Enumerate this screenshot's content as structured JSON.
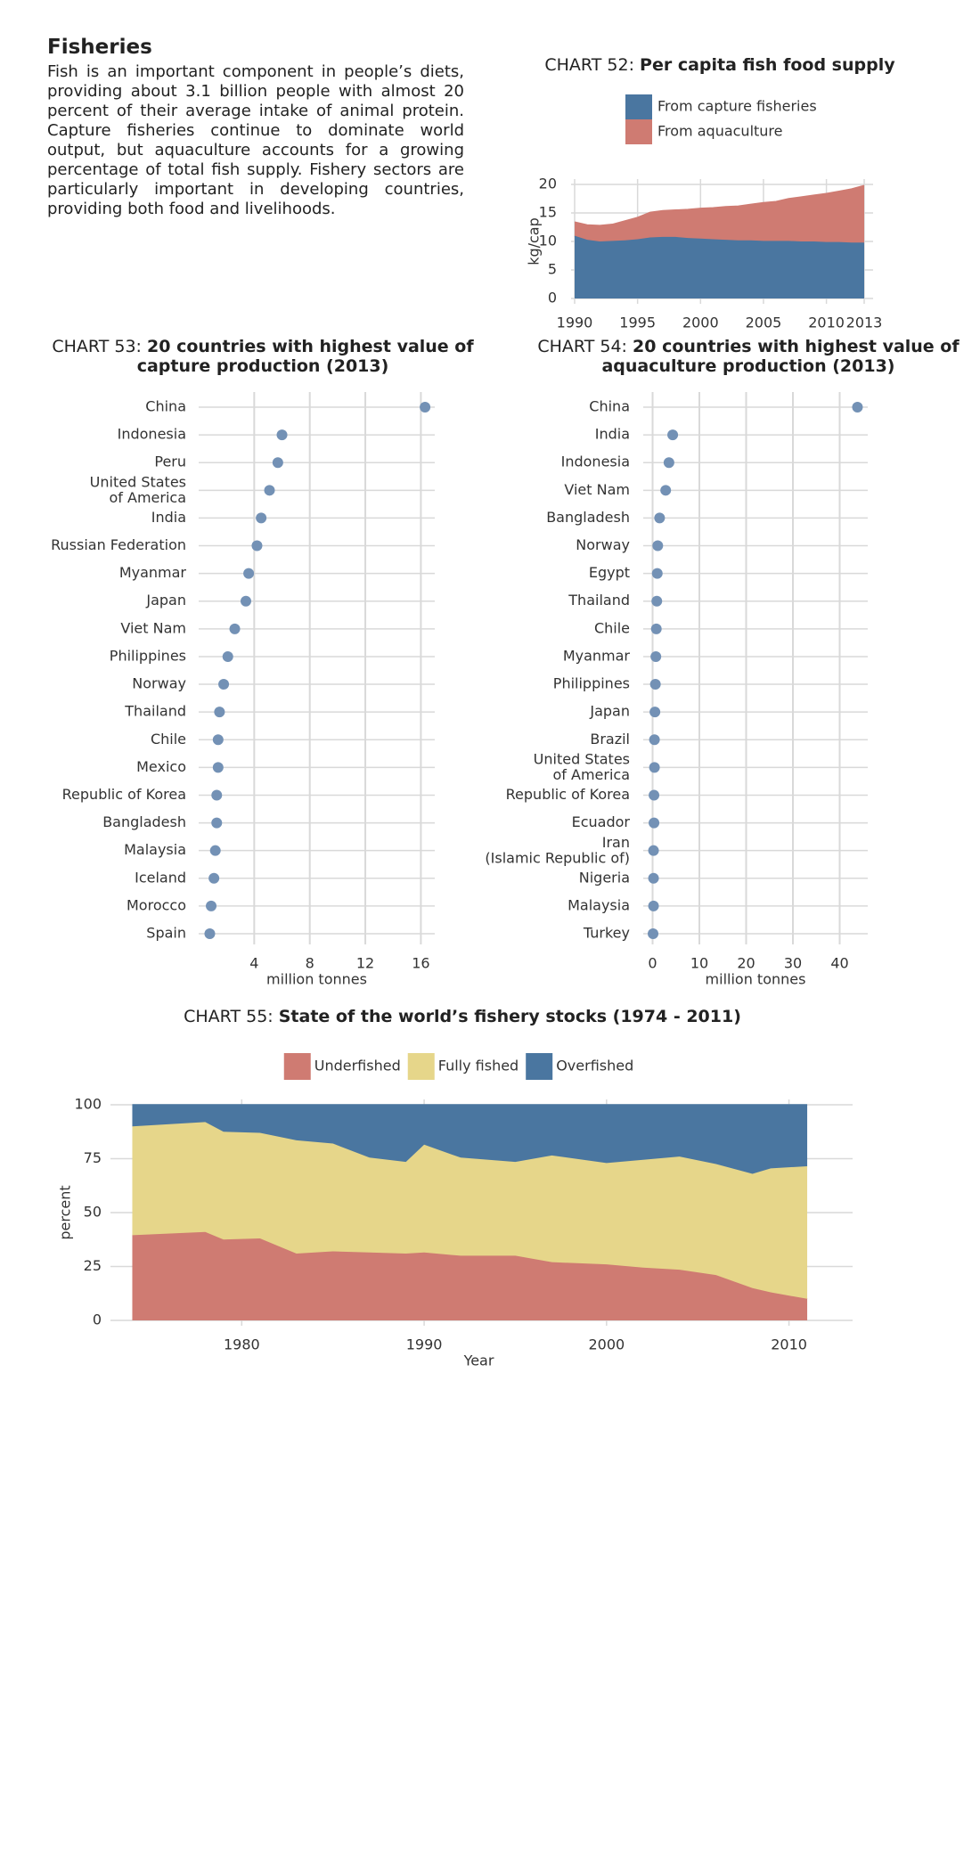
{
  "intro": {
    "heading": "Fisheries",
    "text": "Fish is an important component in people’s diets, providing about 3.1 billion people with almost 20 percent of their average intake of animal protein.  Capture fisheries continue to dominate world output, but aquaculture accounts for a growing percentage of total fish supply.  Fishery sectors are particularly important in developing countries, providing both food and livelihoods."
  },
  "chart_data": [
    {
      "type": "area",
      "chart_label": "CHART 52:",
      "title": "Per capita fish food supply",
      "x": [
        1990,
        1991,
        1992,
        1993,
        1994,
        1995,
        1996,
        1997,
        1998,
        1999,
        2000,
        2001,
        2002,
        2003,
        2004,
        2005,
        2006,
        2007,
        2008,
        2009,
        2010,
        2011,
        2012,
        2013
      ],
      "series": [
        {
          "name": "From capture fisheries",
          "color": "#4a76a0",
          "values": [
            11.0,
            10.3,
            10.0,
            10.1,
            10.2,
            10.4,
            10.7,
            10.8,
            10.8,
            10.6,
            10.5,
            10.4,
            10.3,
            10.2,
            10.2,
            10.1,
            10.1,
            10.1,
            10.0,
            10.0,
            9.9,
            9.9,
            9.8,
            9.8
          ]
        },
        {
          "name": "From aquaculture",
          "color": "#cf7b72",
          "values": [
            2.4,
            2.6,
            2.8,
            2.9,
            3.4,
            3.8,
            4.4,
            4.6,
            4.7,
            5.0,
            5.3,
            5.5,
            5.8,
            6.0,
            6.3,
            6.7,
            6.9,
            7.4,
            7.8,
            8.1,
            8.5,
            8.9,
            9.4,
            10.0
          ]
        }
      ],
      "xlim": [
        1990,
        2013
      ],
      "xticks": [
        1990,
        1995,
        2000,
        2005,
        2010,
        2013
      ],
      "ylim": [
        0,
        20
      ],
      "yticks": [
        0,
        5,
        10,
        15,
        20
      ],
      "ylabel": "kg/cap",
      "grid": true,
      "stacked": true,
      "legend": "top"
    },
    {
      "type": "dot",
      "chart_label": "CHART 53:",
      "title": "20 countries with highest value of capture production (2013)",
      "categories": [
        "China",
        "Indonesia",
        "Peru",
        "United States\nof America",
        "India",
        "Russian Federation",
        "Myanmar",
        "Japan",
        "Viet Nam",
        "Philippines",
        "Norway",
        "Thailand",
        "Chile",
        "Mexico",
        "Republic of Korea",
        "Bangladesh",
        "Malaysia",
        "Iceland",
        "Morocco",
        "Spain"
      ],
      "values": [
        16.3,
        6.0,
        5.7,
        5.1,
        4.5,
        4.2,
        3.6,
        3.4,
        2.6,
        2.1,
        1.8,
        1.5,
        1.4,
        1.4,
        1.3,
        1.3,
        1.2,
        1.1,
        0.9,
        0.8
      ],
      "color": "#7391b5",
      "xlim": [
        0,
        17
      ],
      "xticks": [
        4,
        8,
        12,
        16
      ],
      "xlabel": "million tonnes",
      "grid": true
    },
    {
      "type": "dot",
      "chart_label": "CHART 54:",
      "title": "20 countries with highest value of aquaculture production (2013)",
      "categories": [
        "China",
        "India",
        "Indonesia",
        "Viet Nam",
        "Bangladesh",
        "Norway",
        "Egypt",
        "Thailand",
        "Chile",
        "Myanmar",
        "Philippines",
        "Japan",
        "Brazil",
        "United States\nof America",
        "Republic of Korea",
        "Ecuador",
        "Iran\n(Islamic Republic of)",
        "Nigeria",
        "Malaysia",
        "Turkey"
      ],
      "values": [
        43.8,
        4.3,
        3.5,
        2.8,
        1.5,
        1.1,
        1.0,
        0.9,
        0.8,
        0.7,
        0.6,
        0.5,
        0.4,
        0.4,
        0.3,
        0.3,
        0.2,
        0.2,
        0.2,
        0.1
      ],
      "color": "#7391b5",
      "xlim": [
        -2,
        46
      ],
      "xticks": [
        0,
        10,
        20,
        30,
        40
      ],
      "xlabel": "million tonnes",
      "grid": true
    },
    {
      "type": "area",
      "chart_label": "CHART 55:",
      "title": "State of the world’s fishery stocks (1974 - 2011)",
      "x": [
        1974,
        1978,
        1979,
        1981,
        1983,
        1985,
        1987,
        1989,
        1990,
        1992,
        1995,
        1997,
        2000,
        2002,
        2004,
        2006,
        2008,
        2009,
        2011
      ],
      "series": [
        {
          "name": "Underfished",
          "color": "#cf7b72",
          "values": [
            39.5,
            41,
            37.5,
            38,
            31,
            32,
            31.5,
            31,
            31.5,
            30,
            30,
            27,
            26,
            24.5,
            23.5,
            21,
            15,
            13,
            10
          ]
        },
        {
          "name": "Fully fished",
          "color": "#e6d68a",
          "values": [
            50.5,
            51,
            50,
            49,
            52.5,
            50,
            44,
            42.5,
            50,
            45.5,
            43.5,
            49.5,
            47,
            50,
            52.5,
            51.5,
            53,
            57.5,
            61.5
          ]
        },
        {
          "name": "Overfished",
          "color": "#4a76a0",
          "values": [
            10,
            8,
            12.5,
            13,
            16.5,
            18,
            24.5,
            26.5,
            18.5,
            24.5,
            26.5,
            23.5,
            27,
            25.5,
            24,
            27.5,
            32,
            29.5,
            28.5
          ]
        }
      ],
      "xlim": [
        1973,
        2013
      ],
      "xticks": [
        1980,
        1990,
        2000,
        2010
      ],
      "xlabel": "Year",
      "ylim": [
        0,
        100
      ],
      "yticks": [
        0,
        25,
        50,
        75,
        100
      ],
      "ylabel": "percent",
      "grid": true,
      "stacked": true,
      "legend": "top"
    }
  ]
}
